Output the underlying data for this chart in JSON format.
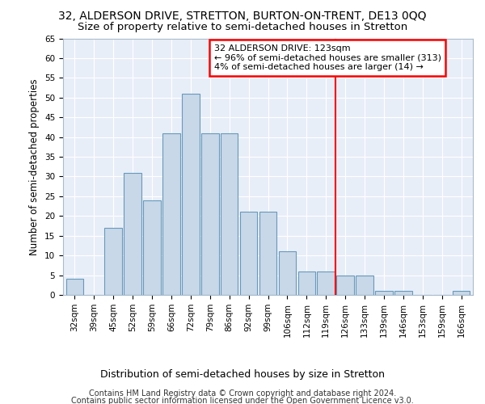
{
  "title": "32, ALDERSON DRIVE, STRETTON, BURTON-ON-TRENT, DE13 0QQ",
  "subtitle": "Size of property relative to semi-detached houses in Stretton",
  "xlabel": "Distribution of semi-detached houses by size in Stretton",
  "ylabel": "Number of semi-detached properties",
  "categories": [
    "32sqm",
    "39sqm",
    "45sqm",
    "52sqm",
    "59sqm",
    "66sqm",
    "72sqm",
    "79sqm",
    "86sqm",
    "92sqm",
    "99sqm",
    "106sqm",
    "112sqm",
    "119sqm",
    "126sqm",
    "133sqm",
    "139sqm",
    "146sqm",
    "153sqm",
    "159sqm",
    "166sqm"
  ],
  "values": [
    4,
    0,
    17,
    31,
    24,
    41,
    51,
    41,
    41,
    21,
    21,
    11,
    6,
    6,
    5,
    5,
    1,
    1,
    0,
    0,
    1
  ],
  "bar_color": "#c8d8e8",
  "bar_edge_color": "#6699bb",
  "vline_x": 13.5,
  "vline_color": "red",
  "annotation_text": "32 ALDERSON DRIVE: 123sqm\n← 96% of semi-detached houses are smaller (313)\n4% of semi-detached houses are larger (14) →",
  "annotation_box_color": "white",
  "annotation_box_edge_color": "red",
  "ylim": [
    0,
    65
  ],
  "yticks": [
    0,
    5,
    10,
    15,
    20,
    25,
    30,
    35,
    40,
    45,
    50,
    55,
    60,
    65
  ],
  "background_color": "#e8eef8",
  "footer_line1": "Contains HM Land Registry data © Crown copyright and database right 2024.",
  "footer_line2": "Contains public sector information licensed under the Open Government Licence v3.0.",
  "title_fontsize": 10,
  "subtitle_fontsize": 9.5,
  "xlabel_fontsize": 9,
  "ylabel_fontsize": 8.5,
  "tick_fontsize": 7.5,
  "annotation_fontsize": 8,
  "footer_fontsize": 7
}
